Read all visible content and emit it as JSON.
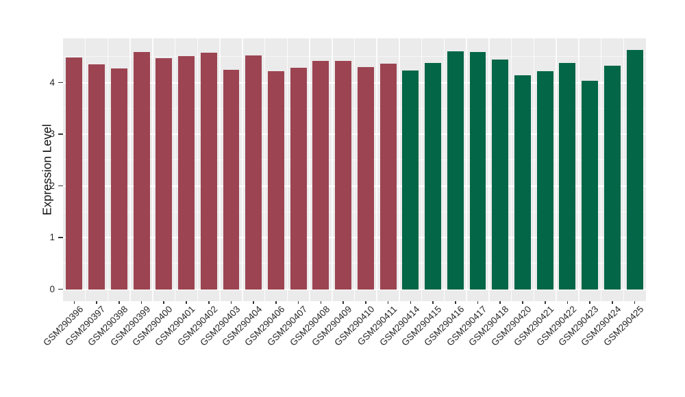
{
  "chart_data": {
    "type": "bar",
    "title": "",
    "xlabel": "",
    "ylabel": "Expression Level",
    "ylim": [
      0,
      4.85
    ],
    "yticks": [
      0,
      1,
      2,
      3,
      4
    ],
    "minor_ticks": [
      0.5,
      1.5,
      2.5,
      3.5,
      4.5
    ],
    "grid": true,
    "legend": "none",
    "categories": [
      "GSM290396",
      "GSM290397",
      "GSM290398",
      "GSM290399",
      "GSM290400",
      "GSM290401",
      "GSM290402",
      "GSM290403",
      "GSM290404",
      "GSM290406",
      "GSM290407",
      "GSM290408",
      "GSM290409",
      "GSM290410",
      "GSM290411",
      "GSM290414",
      "GSM290415",
      "GSM290416",
      "GSM290417",
      "GSM290418",
      "GSM290420",
      "GSM290421",
      "GSM290422",
      "GSM290423",
      "GSM290424",
      "GSM290425"
    ],
    "values": [
      4.48,
      4.36,
      4.27,
      4.59,
      4.47,
      4.51,
      4.58,
      4.25,
      4.53,
      4.22,
      4.29,
      4.42,
      4.42,
      4.3,
      4.37,
      4.24,
      4.38,
      4.61,
      4.59,
      4.45,
      4.14,
      4.22,
      4.38,
      4.04,
      4.33,
      4.63
    ],
    "group_of_bar": [
      0,
      0,
      0,
      0,
      0,
      0,
      0,
      0,
      0,
      0,
      0,
      0,
      0,
      0,
      0,
      1,
      1,
      1,
      1,
      1,
      1,
      1,
      1,
      1,
      1,
      1
    ],
    "groups": [
      {
        "name": "maroon-group",
        "color": "#9c4452"
      },
      {
        "name": "green-group",
        "color": "#026647"
      }
    ],
    "colors": {
      "panel_background": "#ebebeb",
      "figure_background": "#ffffff",
      "grid_major": "#ffffff",
      "axis_text": "#262626",
      "tick_mark": "#333333"
    }
  }
}
